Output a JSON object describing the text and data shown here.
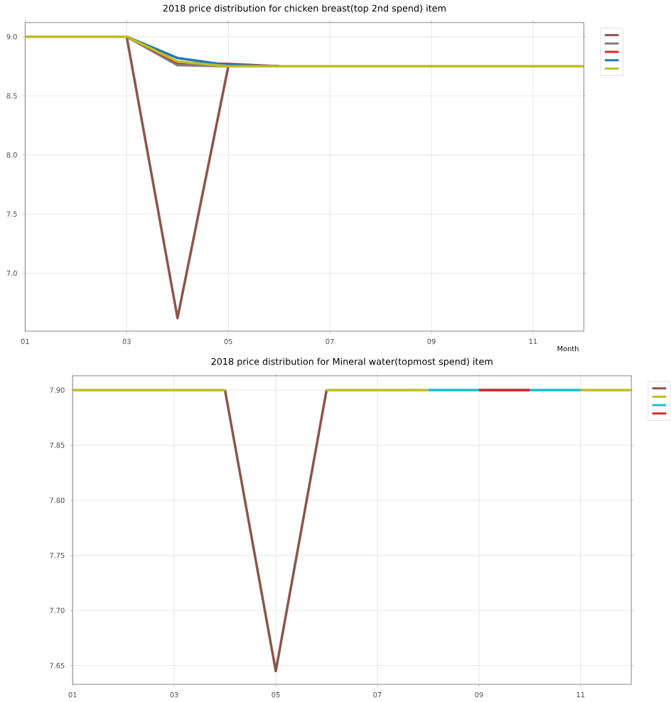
{
  "chart_data": [
    {
      "type": "line",
      "title": "2018 price distribution for chicken breast(top 2nd spend) item",
      "xlabel": "Month",
      "x": [
        1,
        2,
        3,
        4,
        5,
        6,
        7,
        8,
        9,
        10,
        11,
        12
      ],
      "series": [
        {
          "color": "#8c564b",
          "values": [
            null,
            null,
            9.0,
            6.62,
            8.75,
            null,
            null,
            null,
            null,
            null,
            null,
            null
          ]
        },
        {
          "color": "#7f7f7f",
          "values": [
            null,
            null,
            9.0,
            8.76,
            8.75,
            null,
            null,
            null,
            null,
            null,
            null,
            null
          ]
        },
        {
          "color": "#d62728",
          "values": [
            null,
            null,
            9.0,
            8.78,
            8.77,
            8.75,
            null,
            null,
            null,
            null,
            null,
            null
          ]
        },
        {
          "color": "#1f77b4",
          "values": [
            null,
            null,
            9.0,
            8.82,
            8.76,
            8.75,
            null,
            null,
            null,
            null,
            null,
            null
          ]
        },
        {
          "color": "#bcbd22",
          "values": [
            9.0,
            9.0,
            9.0,
            8.79,
            8.75,
            8.75,
            8.75,
            8.75,
            8.75,
            8.75,
            8.75,
            8.75
          ]
        }
      ],
      "xlim": [
        1,
        12
      ],
      "ylim": [
        6.51,
        9.12
      ],
      "xticks": [
        {
          "value": 1,
          "label": "01"
        },
        {
          "value": 3,
          "label": "03"
        },
        {
          "value": 5,
          "label": "05"
        },
        {
          "value": 7,
          "label": "07"
        },
        {
          "value": 9,
          "label": "09"
        },
        {
          "value": 11,
          "label": "11"
        }
      ],
      "yticks": [
        {
          "value": 7.0,
          "label": "7.0"
        },
        {
          "value": 7.5,
          "label": "7.5"
        },
        {
          "value": 8.0,
          "label": "8.0"
        },
        {
          "value": 8.5,
          "label": "8.5"
        },
        {
          "value": 9.0,
          "label": "9.0"
        }
      ],
      "grid": true,
      "line_style": "solid"
    },
    {
      "type": "line",
      "title": "2018 price distribution for Mineral water(topmost spend) item",
      "x": [
        1,
        2,
        3,
        4,
        5,
        6,
        7,
        8,
        9,
        10,
        11,
        12
      ],
      "series": [
        {
          "color": "#8c564b",
          "values": [
            null,
            null,
            null,
            7.9,
            7.645,
            7.9,
            null,
            null,
            null,
            null,
            null,
            null
          ]
        },
        {
          "color": "#bcbd22",
          "values": [
            7.9,
            7.9,
            7.9,
            7.9,
            null,
            7.9,
            7.9,
            7.9,
            null,
            null,
            7.9,
            7.9
          ]
        },
        {
          "color": "#17becf",
          "values": [
            null,
            null,
            null,
            null,
            null,
            null,
            null,
            7.9,
            7.9,
            7.9,
            7.9,
            null
          ]
        },
        {
          "color": "#d62728",
          "values": [
            null,
            null,
            null,
            null,
            null,
            null,
            null,
            null,
            7.9,
            7.9,
            null,
            null
          ]
        }
      ],
      "xlim": [
        1,
        12
      ],
      "ylim": [
        7.633,
        7.913
      ],
      "xticks": [
        {
          "value": 1,
          "label": "01"
        },
        {
          "value": 3,
          "label": "03"
        },
        {
          "value": 5,
          "label": "05"
        },
        {
          "value": 7,
          "label": "07"
        },
        {
          "value": 9,
          "label": "09"
        },
        {
          "value": 11,
          "label": "11"
        }
      ],
      "yticks": [
        {
          "value": 7.65,
          "label": "7.65"
        },
        {
          "value": 7.7,
          "label": "7.70"
        },
        {
          "value": 7.75,
          "label": "7.75"
        },
        {
          "value": 7.8,
          "label": "7.80"
        },
        {
          "value": 7.85,
          "label": "7.85"
        },
        {
          "value": 7.9,
          "label": "7.90"
        }
      ],
      "grid": true,
      "line_style": "solid"
    }
  ]
}
